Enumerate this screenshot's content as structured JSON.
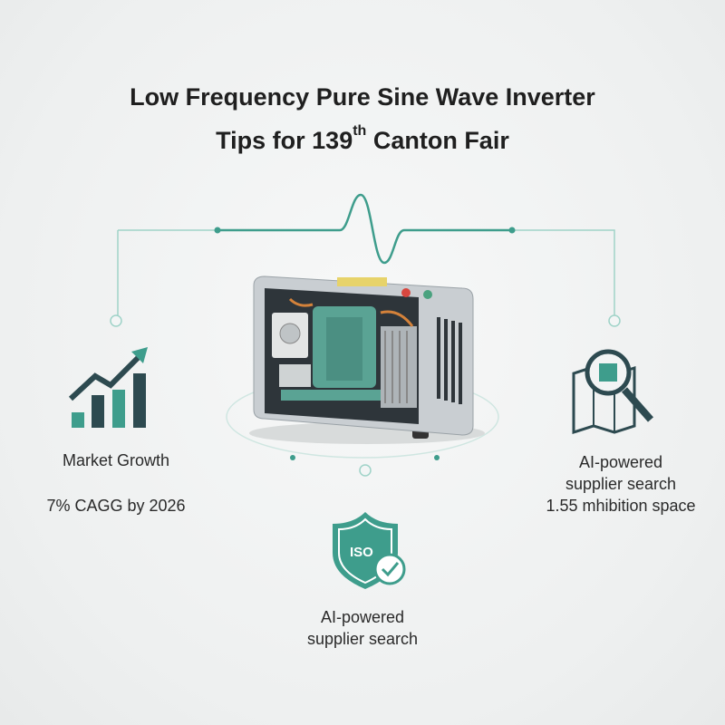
{
  "title": {
    "line1": "Low Frequency Pure Sine Wave Inverter",
    "line2_pre": "Tips for 139",
    "line2_sup": "th",
    "line2_post": " Canton Fair"
  },
  "left": {
    "icon": "growth-chart-icon",
    "label": "Market Growth",
    "value": "7% CAGG by 2026"
  },
  "right": {
    "icon": "map-search-icon",
    "line1": "AI-powered",
    "line2": "supplier search",
    "line3": "1.55 mhibition space"
  },
  "bottom": {
    "icon": "iso-shield-icon",
    "badge": "ISO",
    "line1": "AI-powered",
    "line2": "supplier search"
  },
  "colors": {
    "accent": "#3e9d8c",
    "dark": "#2d4a50",
    "background": "#f0f2f2"
  }
}
